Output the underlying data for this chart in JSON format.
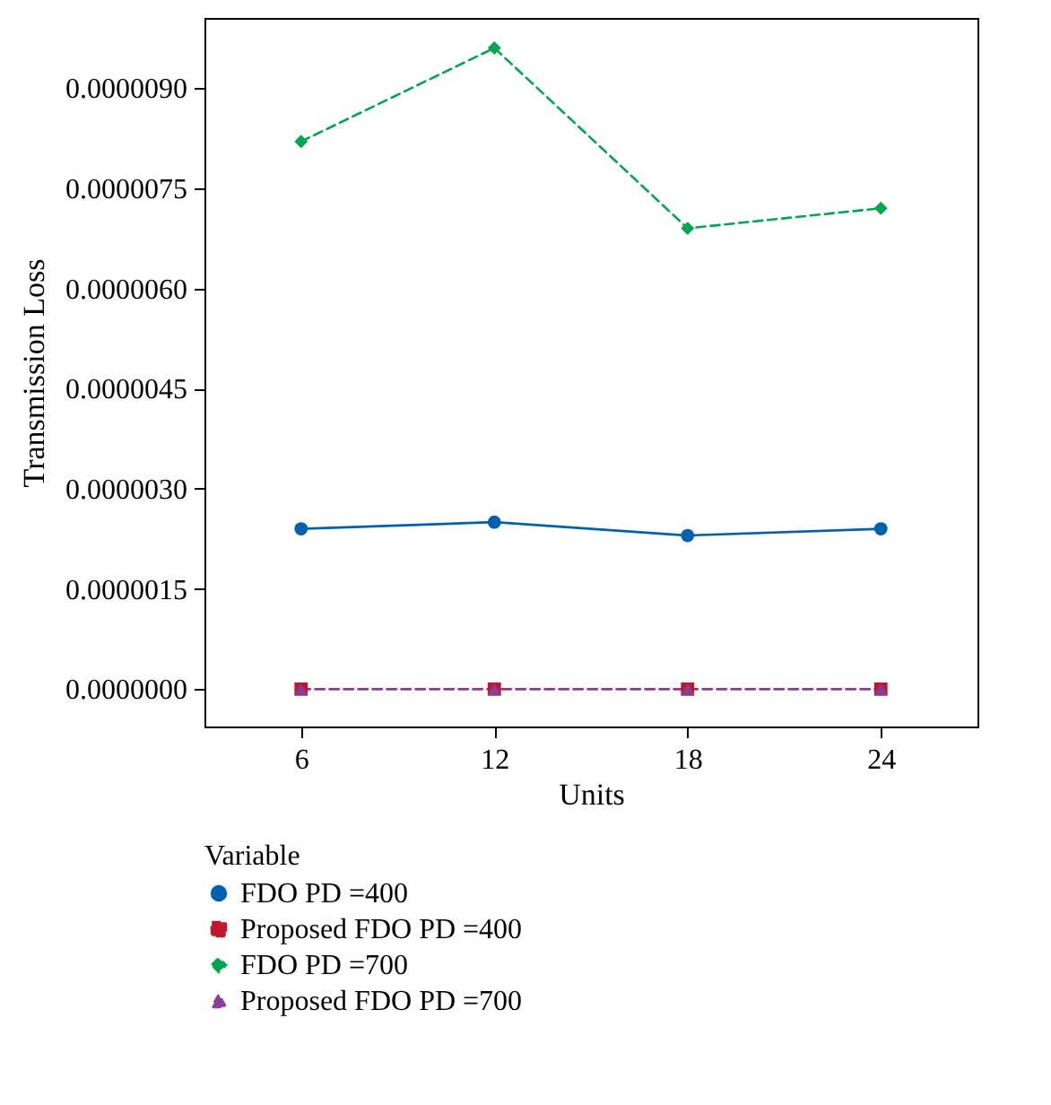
{
  "chart_data": {
    "type": "line",
    "xlabel": "Units",
    "ylabel": "Transmission Loss",
    "legend_title": "Variable",
    "legend": "bottom",
    "grid": false,
    "x": [
      6,
      12,
      18,
      24
    ],
    "xlim": [
      3,
      27
    ],
    "xticks": [
      6,
      12,
      18,
      24
    ],
    "ylim": [
      -5.6e-07,
      1.005e-05
    ],
    "yticks": [
      {
        "value": 0,
        "label": "0.0000000"
      },
      {
        "value": 1.5e-06,
        "label": "0.0000015"
      },
      {
        "value": 3e-06,
        "label": "0.0000030"
      },
      {
        "value": 4.5e-06,
        "label": "0.0000045"
      },
      {
        "value": 6e-06,
        "label": "0.0000060"
      },
      {
        "value": 7.5e-06,
        "label": "0.0000075"
      },
      {
        "value": 9e-06,
        "label": "0.0000090"
      }
    ],
    "series": [
      {
        "name": "FDO PD =400",
        "color": "#0061b0",
        "marker": "circle",
        "line_style": "solid",
        "values": [
          2.4e-06,
          2.5e-06,
          2.3e-06,
          2.4e-06
        ]
      },
      {
        "name": "Proposed FDO PD =400",
        "color": "#c0182b",
        "marker": "square",
        "line_style": "dashed",
        "values": [
          0,
          0,
          0,
          0
        ]
      },
      {
        "name": "FDO PD =700",
        "color": "#00a651",
        "marker": "diamond",
        "line_style": "dashed",
        "values": [
          8.2e-06,
          9.6e-06,
          6.9e-06,
          7.2e-06
        ]
      },
      {
        "name": "Proposed FDO PD =700",
        "color": "#8a3d98",
        "marker": "triangle",
        "line_style": "dashed",
        "values": [
          0,
          0,
          0,
          0
        ]
      }
    ]
  }
}
